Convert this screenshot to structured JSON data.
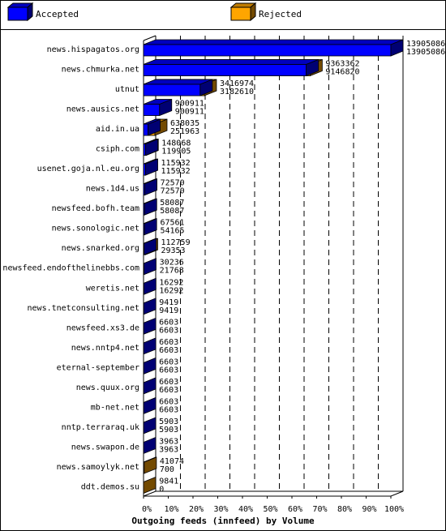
{
  "legend": [
    {
      "label": "Accepted",
      "color": "#0000ff"
    },
    {
      "label": "Rejected",
      "color": "#ffa500"
    }
  ],
  "chart_data": {
    "type": "bar",
    "orientation": "horizontal",
    "stacked": false,
    "title": "Outgoing feeds (innfeed) by Volume",
    "xlabel": "",
    "ylabel": "",
    "xlim": [
      0,
      100
    ],
    "x_ticks": [
      "0%",
      "10%",
      "20%",
      "30%",
      "40%",
      "50%",
      "60%",
      "70%",
      "80%",
      "90%",
      "100%"
    ],
    "grid": true,
    "legend_position": "top",
    "max_value": 13905086,
    "categories": [
      "news.hispagatos.org",
      "news.chmurka.net",
      "utnut",
      "news.ausics.net",
      "aid.in.ua",
      "csiph.com",
      "usenet.goja.nl.eu.org",
      "news.1d4.us",
      "newsfeed.bofh.team",
      "news.sonologic.net",
      "news.snarked.org",
      "newsfeed.endofthelinebbs.com",
      "weretis.net",
      "news.tnetconsulting.net",
      "newsfeed.xs3.de",
      "news.nntp4.net",
      "eternal-september",
      "news.quux.org",
      "mb-net.net",
      "nntp.terraraq.uk",
      "news.swapon.de",
      "news.samoylyk.net",
      "ddt.demos.su"
    ],
    "series": [
      {
        "name": "Accepted",
        "values": [
          13905086,
          9146820,
          3182610,
          900911,
          251963,
          119905,
          115932,
          72570,
          58087,
          54165,
          29353,
          21768,
          16292,
          9419,
          6603,
          6603,
          6603,
          6603,
          6603,
          5903,
          3963,
          700,
          0
        ]
      },
      {
        "name": "Rejected",
        "values": [
          13905086,
          9363362,
          3416974,
          900911,
          638035,
          148068,
          115932,
          72570,
          58087,
          67561,
          112759,
          30236,
          16292,
          9419,
          6603,
          6603,
          6603,
          6603,
          6603,
          5903,
          3963,
          41074,
          9841
        ]
      }
    ],
    "top_labels": [
      "13905086",
      "9363362",
      "3416974",
      "900911",
      "638035",
      "148068",
      "115932",
      "72570",
      "58087",
      "67561",
      "112759",
      "30236",
      "16292",
      "9419",
      "6603",
      "6603",
      "6603",
      "6603",
      "6603",
      "5903",
      "3963",
      "41074",
      "9841"
    ],
    "bottom_labels": [
      "13905086",
      "9146820",
      "3182610",
      "900911",
      "251963",
      "119905",
      "115932",
      "72570",
      "58087",
      "54165",
      "29353",
      "21768",
      "16292",
      "9419",
      "6603",
      "6603",
      "6603",
      "6603",
      "6603",
      "5903",
      "3963",
      "700",
      "0"
    ]
  }
}
